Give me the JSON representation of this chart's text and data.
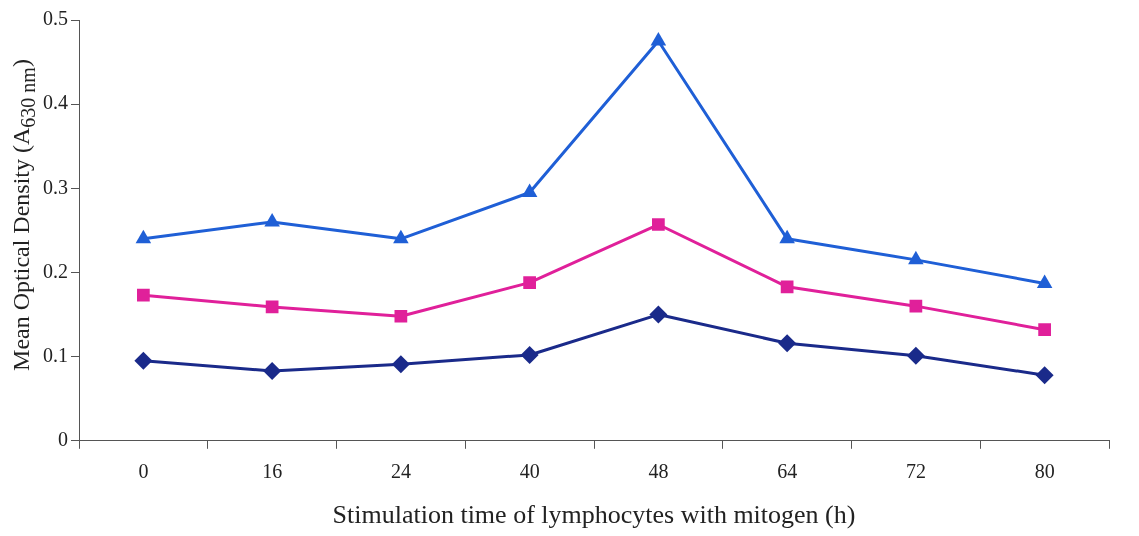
{
  "chart_data": {
    "type": "line",
    "xlabel": "Stimulation time of lymphocytes with mitogen (h)",
    "ylabel": "Mean Optical Density (A$_{630 nm}$)",
    "categories": [
      "0",
      "16",
      "24",
      "40",
      "48",
      "64",
      "72",
      "80"
    ],
    "ylim": [
      0,
      0.5
    ],
    "yticks": [
      0,
      0.1,
      0.2,
      0.3,
      0.4,
      0.5
    ],
    "grid": false,
    "legend": false,
    "line_style": "solid",
    "series": [
      {
        "color": "#1f5fd6",
        "marker": "triangle",
        "values": [
          0.24,
          0.26,
          0.24,
          0.295,
          0.475,
          0.24,
          0.215,
          0.187
        ]
      },
      {
        "color": "#e0209a",
        "marker": "square",
        "values": [
          0.173,
          0.159,
          0.148,
          0.188,
          0.257,
          0.183,
          0.16,
          0.132
        ]
      },
      {
        "color": "#1a2a8a",
        "marker": "diamond",
        "values": [
          0.095,
          0.083,
          0.091,
          0.102,
          0.15,
          0.116,
          0.101,
          0.078
        ]
      }
    ]
  }
}
